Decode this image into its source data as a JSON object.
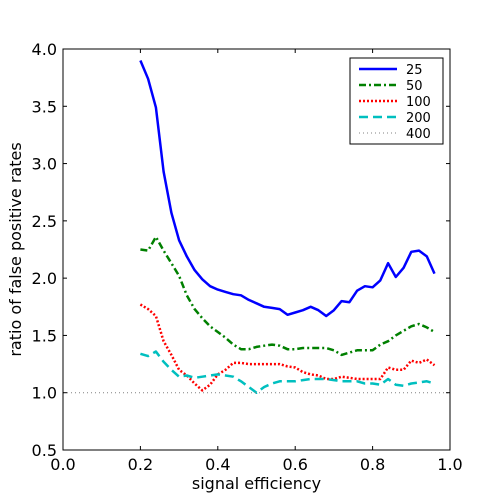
{
  "chart_data": {
    "type": "line",
    "xlabel": "signal efficiency",
    "ylabel": "ratio of false positive rates",
    "xlim": [
      0.0,
      1.0
    ],
    "ylim": [
      0.5,
      4.0
    ],
    "xticks": [
      "0.0",
      "0.2",
      "0.4",
      "0.6",
      "0.8",
      "1.0"
    ],
    "yticks": [
      "0.5",
      "1.0",
      "1.5",
      "2.0",
      "2.5",
      "3.0",
      "3.5",
      "4.0"
    ],
    "grid": false,
    "legend_position": "top-right",
    "series": [
      {
        "name": "25",
        "color": "#0000ff",
        "style": "solid",
        "x": [
          0.2,
          0.22,
          0.24,
          0.26,
          0.28,
          0.3,
          0.32,
          0.34,
          0.36,
          0.38,
          0.4,
          0.42,
          0.44,
          0.46,
          0.48,
          0.5,
          0.52,
          0.54,
          0.56,
          0.58,
          0.6,
          0.62,
          0.64,
          0.66,
          0.68,
          0.7,
          0.72,
          0.74,
          0.76,
          0.78,
          0.8,
          0.82,
          0.84,
          0.86,
          0.88,
          0.9,
          0.92,
          0.94,
          0.96
        ],
        "y": [
          3.9,
          3.74,
          3.49,
          2.93,
          2.57,
          2.33,
          2.19,
          2.07,
          1.99,
          1.93,
          1.9,
          1.88,
          1.86,
          1.85,
          1.81,
          1.78,
          1.75,
          1.74,
          1.73,
          1.68,
          1.7,
          1.72,
          1.75,
          1.72,
          1.67,
          1.72,
          1.8,
          1.79,
          1.89,
          1.93,
          1.92,
          1.98,
          2.13,
          2.01,
          2.09,
          2.23,
          2.24,
          2.19,
          2.04
        ]
      },
      {
        "name": "50",
        "color": "#008000",
        "style": "dashdot",
        "x": [
          0.2,
          0.22,
          0.24,
          0.26,
          0.28,
          0.3,
          0.32,
          0.34,
          0.36,
          0.38,
          0.4,
          0.42,
          0.44,
          0.46,
          0.48,
          0.5,
          0.52,
          0.54,
          0.56,
          0.58,
          0.6,
          0.62,
          0.64,
          0.66,
          0.68,
          0.7,
          0.72,
          0.74,
          0.76,
          0.78,
          0.8,
          0.82,
          0.84,
          0.86,
          0.88,
          0.9,
          0.92,
          0.94,
          0.96
        ],
        "y": [
          2.25,
          2.24,
          2.36,
          2.24,
          2.13,
          2.02,
          1.85,
          1.73,
          1.65,
          1.58,
          1.53,
          1.48,
          1.42,
          1.38,
          1.38,
          1.4,
          1.41,
          1.42,
          1.41,
          1.38,
          1.38,
          1.39,
          1.39,
          1.39,
          1.39,
          1.37,
          1.33,
          1.35,
          1.37,
          1.37,
          1.37,
          1.42,
          1.45,
          1.5,
          1.54,
          1.58,
          1.6,
          1.57,
          1.53
        ]
      },
      {
        "name": "100",
        "color": "#ff0000",
        "style": "dotted",
        "x": [
          0.2,
          0.22,
          0.24,
          0.26,
          0.28,
          0.3,
          0.32,
          0.34,
          0.36,
          0.38,
          0.4,
          0.42,
          0.44,
          0.46,
          0.48,
          0.5,
          0.52,
          0.54,
          0.56,
          0.58,
          0.6,
          0.62,
          0.64,
          0.66,
          0.68,
          0.7,
          0.72,
          0.74,
          0.76,
          0.78,
          0.8,
          0.82,
          0.84,
          0.86,
          0.88,
          0.9,
          0.92,
          0.94,
          0.96
        ],
        "y": [
          1.77,
          1.73,
          1.67,
          1.45,
          1.33,
          1.2,
          1.15,
          1.08,
          1.02,
          1.07,
          1.16,
          1.2,
          1.26,
          1.26,
          1.25,
          1.25,
          1.25,
          1.25,
          1.25,
          1.23,
          1.22,
          1.18,
          1.16,
          1.15,
          1.12,
          1.12,
          1.14,
          1.13,
          1.12,
          1.12,
          1.12,
          1.12,
          1.22,
          1.2,
          1.2,
          1.28,
          1.26,
          1.29,
          1.24
        ]
      },
      {
        "name": "200",
        "color": "#00bfbf",
        "style": "dashed",
        "x": [
          0.2,
          0.22,
          0.24,
          0.26,
          0.28,
          0.3,
          0.32,
          0.34,
          0.36,
          0.38,
          0.4,
          0.42,
          0.44,
          0.46,
          0.48,
          0.5,
          0.52,
          0.54,
          0.56,
          0.58,
          0.6,
          0.62,
          0.64,
          0.66,
          0.68,
          0.7,
          0.72,
          0.74,
          0.76,
          0.78,
          0.8,
          0.82,
          0.84,
          0.86,
          0.88,
          0.9,
          0.92,
          0.94,
          0.96
        ],
        "y": [
          1.34,
          1.32,
          1.36,
          1.27,
          1.2,
          1.14,
          1.15,
          1.13,
          1.14,
          1.15,
          1.16,
          1.15,
          1.14,
          1.1,
          1.05,
          1.0,
          1.05,
          1.08,
          1.1,
          1.1,
          1.1,
          1.11,
          1.12,
          1.12,
          1.12,
          1.11,
          1.1,
          1.1,
          1.1,
          1.08,
          1.08,
          1.07,
          1.12,
          1.07,
          1.06,
          1.08,
          1.09,
          1.1,
          1.08
        ]
      },
      {
        "name": "400",
        "color": "#808080",
        "style": "fine-dotted",
        "x": [
          0.2,
          0.96
        ],
        "y": [
          1.0,
          1.0
        ]
      }
    ]
  }
}
